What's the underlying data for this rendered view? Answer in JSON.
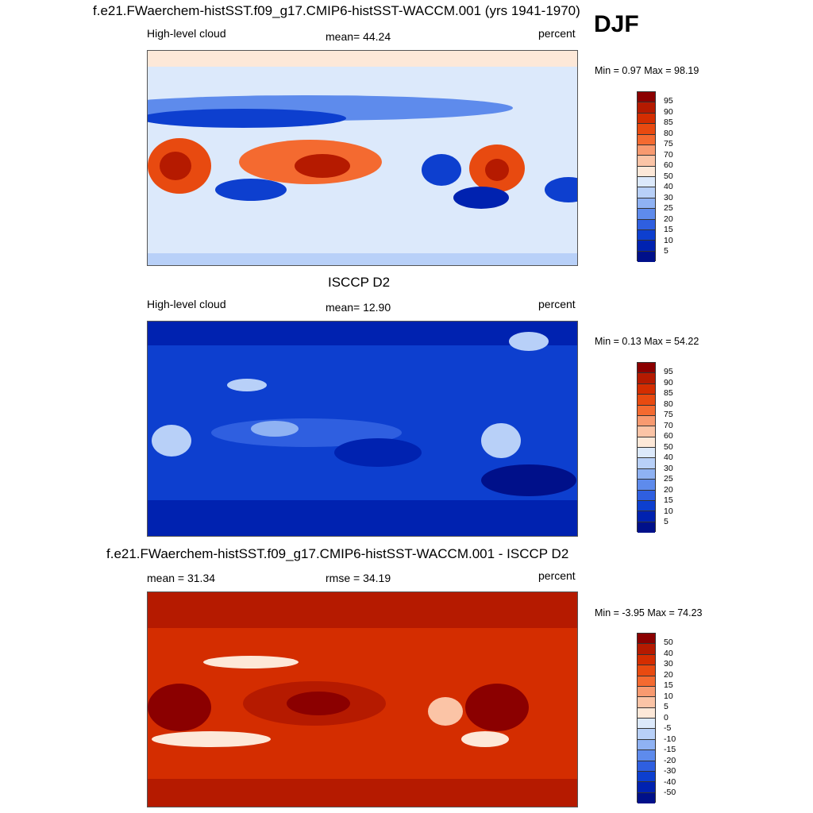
{
  "season": "DJF",
  "panels": [
    {
      "title": "f.e21.FWaerchem-histSST.f09_g17.CMIP6-histSST-WACCM.001 (yrs 1941-1970)",
      "variable": "High-level cloud",
      "stat": "mean=  44.24",
      "units": "percent",
      "minmax": "Min =   0.97 Max =  98.19",
      "chart_data": {
        "type": "heatmap",
        "title": "f.e21.FWaerchem-histSST.f09_g17.CMIP6-histSST-WACCM.001 (yrs 1941-1970)",
        "mean": 44.24,
        "min": 0.97,
        "max": 98.19,
        "units": "percent",
        "levels": [
          "95",
          "90",
          "85",
          "80",
          "75",
          "70",
          "60",
          "50",
          "40",
          "30",
          "25",
          "20",
          "15",
          "10",
          "5"
        ]
      }
    },
    {
      "title": "ISCCP D2",
      "variable": "High-level cloud",
      "stat": "mean=  12.90",
      "units": "percent",
      "minmax": "Min =   0.13 Max =  54.22",
      "chart_data": {
        "type": "heatmap",
        "title": "ISCCP D2",
        "mean": 12.9,
        "min": 0.13,
        "max": 54.22,
        "units": "percent",
        "levels": [
          "95",
          "90",
          "85",
          "80",
          "75",
          "70",
          "60",
          "50",
          "40",
          "30",
          "25",
          "20",
          "15",
          "10",
          "5"
        ]
      }
    },
    {
      "title": "f.e21.FWaerchem-histSST.f09_g17.CMIP6-histSST-WACCM.001 - ISCCP D2",
      "variable": "mean =  31.34",
      "stat": "rmse =  34.19",
      "units": "percent",
      "minmax": "Min =  -3.95 Max =  74.23",
      "chart_data": {
        "type": "heatmap",
        "title": "f.e21.FWaerchem-histSST.f09_g17.CMIP6-histSST-WACCM.001 - ISCCP D2",
        "mean": 31.34,
        "rmse": 34.19,
        "min": -3.95,
        "max": 74.23,
        "units": "percent",
        "levels": [
          "50",
          "40",
          "30",
          "20",
          "15",
          "10",
          "5",
          "0",
          "-5",
          "-10",
          "-15",
          "-20",
          "-30",
          "-40",
          "-50"
        ]
      }
    }
  ],
  "colors": [
    "#8b0000",
    "#b51a00",
    "#d42d00",
    "#e84a10",
    "#f46a30",
    "#f89a70",
    "#fbc4a6",
    "#fde8d8",
    "#dce9fb",
    "#b8d0f8",
    "#8fb2f3",
    "#5e8bec",
    "#2f5fe0",
    "#0d3fcf",
    "#0022b0",
    "#00108a"
  ]
}
